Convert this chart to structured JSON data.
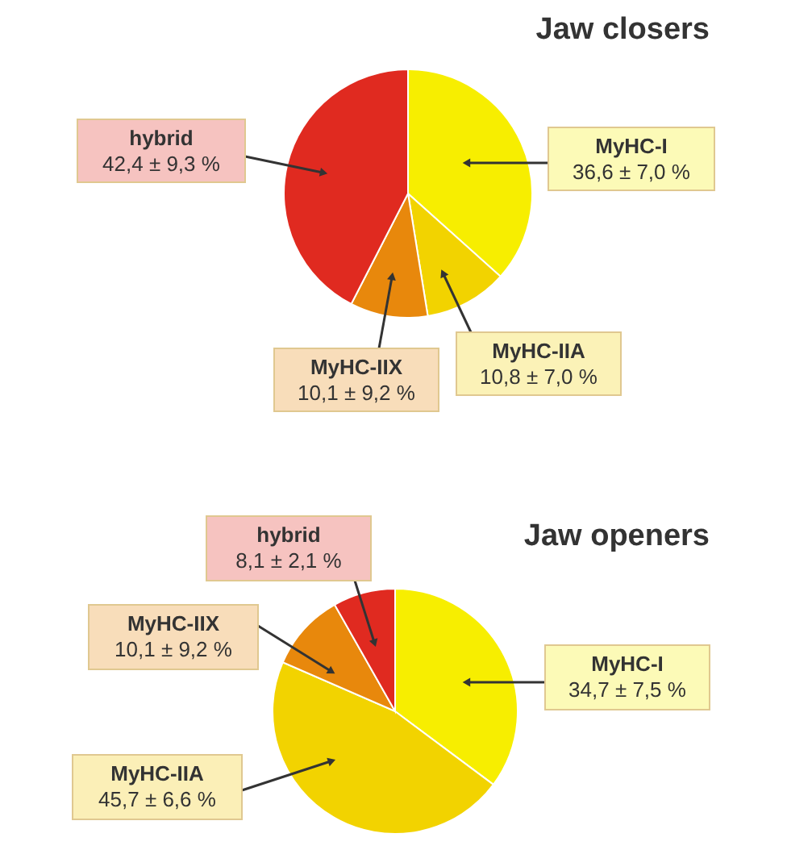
{
  "chart_data": [
    {
      "type": "pie",
      "title": "Jaw closers",
      "categories": [
        "MyHC-I",
        "MyHC-IIA",
        "MyHC-IIX",
        "hybrid"
      ],
      "values": [
        36.6,
        10.8,
        10.1,
        42.4
      ],
      "colors": [
        "#f7ee00",
        "#f2d300",
        "#e8880c",
        "#e02a20"
      ],
      "value_labels": [
        "36,6 ± 7,0 %",
        "10,8 ± 7,0 %",
        "10,1 ± 9,2 %",
        "42,4 ± 9,3 %"
      ]
    },
    {
      "type": "pie",
      "title": "Jaw openers",
      "categories": [
        "MyHC-I",
        "MyHC-IIA",
        "MyHC-IIX",
        "hybrid"
      ],
      "values": [
        34.7,
        45.7,
        10.1,
        8.1
      ],
      "colors": [
        "#f7ee00",
        "#f2c800",
        "#e8880c",
        "#e02a20"
      ],
      "value_labels": [
        "34,7 ± 7,5 %",
        "45,7 ± 6,6 %",
        "10,1 ± 9,2 %",
        "8,1 ± 2,1 %"
      ]
    }
  ]
}
